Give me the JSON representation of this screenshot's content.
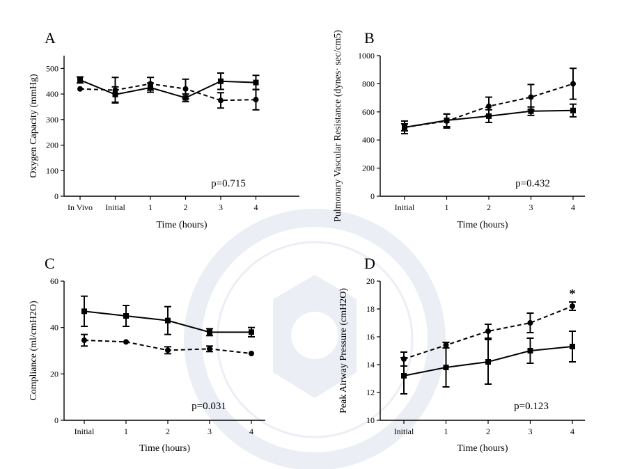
{
  "figure_background_hint": "faint university seal watermark",
  "colors": {
    "line": "#000000",
    "background": "#ffffff"
  },
  "chart_data": [
    {
      "panel": "A",
      "type": "line",
      "categories": [
        "In Vivo",
        "Initial",
        "1",
        "2",
        "3",
        "4"
      ],
      "xlabel": "Time (hours)",
      "ylabel": "Oxygen Capacity (mmHg)",
      "ylim": [
        0,
        550
      ],
      "yticks": [
        0,
        100,
        200,
        300,
        400,
        500
      ],
      "annotation": "p=0.715",
      "series": [
        {
          "style": "solid",
          "marker": "square",
          "values": [
            455,
            398,
            425,
            385,
            450,
            445
          ],
          "errors": [
            12,
            30,
            18,
            15,
            32,
            28
          ]
        },
        {
          "style": "dashed",
          "marker": "circle",
          "values": [
            420,
            415,
            440,
            420,
            375,
            378
          ],
          "errors": [
            0,
            50,
            25,
            38,
            30,
            40
          ]
        }
      ]
    },
    {
      "panel": "B",
      "type": "line",
      "categories": [
        "Initial",
        "1",
        "2",
        "3",
        "4"
      ],
      "xlabel": "Time (hours)",
      "ylabel": "Pulmonary Vascular Resistance (dynes· sec/cm5)",
      "ylim": [
        0,
        1000
      ],
      "yticks": [
        0,
        200,
        400,
        600,
        800,
        1000
      ],
      "annotation": "p=0.432",
      "series": [
        {
          "style": "solid",
          "marker": "square",
          "values": [
            490,
            540,
            570,
            605,
            610
          ],
          "errors": [
            45,
            45,
            45,
            30,
            45
          ]
        },
        {
          "style": "dashed",
          "marker": "circle",
          "values": [
            490,
            535,
            640,
            705,
            800
          ],
          "errors": [
            25,
            50,
            65,
            90,
            110
          ]
        }
      ]
    },
    {
      "panel": "C",
      "type": "line",
      "categories": [
        "Initial",
        "1",
        "2",
        "3",
        "4"
      ],
      "xlabel": "Time (hours)",
      "ylabel": "Compliance (ml/cmH2O)",
      "ylim": [
        0,
        60
      ],
      "yticks": [
        0,
        20,
        40,
        60
      ],
      "annotation": "p=0.031",
      "series": [
        {
          "style": "solid",
          "marker": "square",
          "values": [
            47,
            45,
            43,
            38,
            38
          ],
          "errors": [
            6.5,
            4.5,
            6,
            1.5,
            2
          ]
        },
        {
          "style": "dashed",
          "marker": "circle",
          "values": [
            34.5,
            33.8,
            30.2,
            30.8,
            28.8
          ],
          "errors": [
            2.5,
            0,
            1.5,
            1.2,
            0
          ]
        }
      ]
    },
    {
      "panel": "D",
      "type": "line",
      "categories": [
        "Initial",
        "1",
        "2",
        "3",
        "4"
      ],
      "xlabel": "Time (hours)",
      "ylabel": "Peak Airway Pressure (cmH2O)",
      "ylim": [
        10,
        20
      ],
      "yticks": [
        10,
        12,
        14,
        16,
        18,
        20
      ],
      "annotation": "p=0.123",
      "significance_marker": {
        "text": "*",
        "category": "4"
      },
      "series": [
        {
          "style": "solid",
          "marker": "square",
          "values": [
            13.2,
            13.8,
            14.2,
            15.0,
            15.3
          ],
          "errors": [
            1.3,
            1.4,
            1.6,
            0.9,
            1.1
          ]
        },
        {
          "style": "dashed",
          "marker": "circle",
          "values": [
            14.4,
            15.4,
            16.4,
            17.0,
            18.2
          ],
          "errors": [
            0.5,
            0.2,
            0.5,
            0.7,
            0.3
          ]
        }
      ]
    }
  ]
}
